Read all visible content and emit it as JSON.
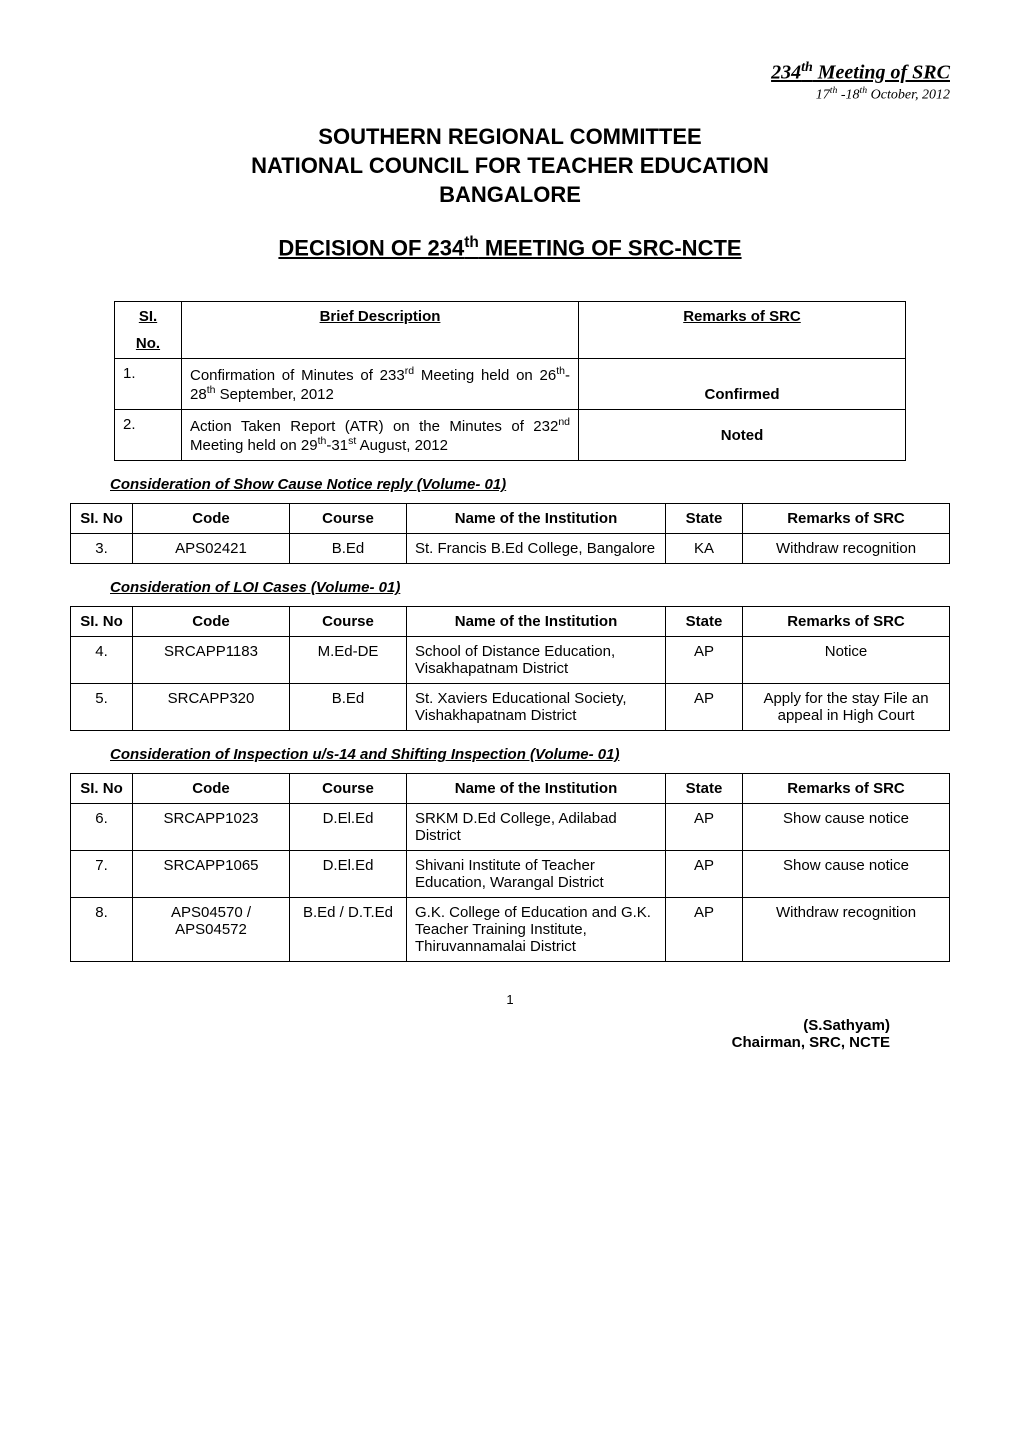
{
  "header": {
    "meeting_title_html": "234<sup>th</sup> Meeting of SRC",
    "meeting_date_html": "17<sup>th</sup> -18<sup>th</sup> October,  2012"
  },
  "main_title": {
    "line1": "SOUTHERN REGIONAL COMMITTEE",
    "line2": "NATIONAL COUNCIL FOR TEACHER EDUCATION",
    "line3": "BANGALORE"
  },
  "decision_title_html": "DECISION OF 234<sup>th</sup> MEETING OF SRC-NCTE",
  "table1": {
    "headers": {
      "col1_line1": "SI.",
      "col1_line2": "No.",
      "col2": "Brief Description",
      "col3": "Remarks of SRC"
    },
    "rows": [
      {
        "no": "1.",
        "desc_html": "Confirmation of Minutes of 233<sup>rd</sup> Meeting held on 26<sup>th</sup>-28<sup>th</sup> September, 2012",
        "remarks": "Confirmed"
      },
      {
        "no": "2.",
        "desc_html": "Action Taken Report (ATR) on the Minutes of 232<sup>nd</sup> Meeting held on 29<sup>th</sup>-31<sup>st</sup> August, 2012",
        "remarks": "Noted"
      }
    ]
  },
  "section1": {
    "heading": "Consideration of  Show Cause Notice reply  (Volume- 01)",
    "headers": {
      "sino": "SI. No",
      "code": "Code",
      "course": "Course",
      "name": "Name of the Institution",
      "state": "State",
      "remarks": "Remarks of SRC"
    },
    "rows": [
      {
        "no": "3.",
        "code": "APS02421",
        "course": "B.Ed",
        "name": "St. Francis B.Ed College, Bangalore",
        "state": "KA",
        "remarks": "Withdraw recognition"
      }
    ]
  },
  "section2": {
    "heading": "Consideration of  LOI Cases (Volume- 01)",
    "rows": [
      {
        "no": "4.",
        "code": "SRCAPP1183",
        "course": "M.Ed-DE",
        "name": "School of Distance Education, Visakhapatnam District",
        "state": "AP",
        "remarks": "Notice"
      },
      {
        "no": "5.",
        "code": "SRCAPP320",
        "course": "B.Ed",
        "name": "St. Xaviers Educational Society, Vishakhapatnam District",
        "state": "AP",
        "remarks": "Apply for the stay File an appeal in High Court"
      }
    ]
  },
  "section3": {
    "heading": "Consideration of  Inspection u/s-14 and Shifting Inspection (Volume- 01)",
    "rows": [
      {
        "no": "6.",
        "code": "SRCAPP1023",
        "course": "D.El.Ed",
        "name": "SRKM D.Ed College, Adilabad District",
        "state": "AP",
        "remarks": "Show cause notice"
      },
      {
        "no": "7.",
        "code": "SRCAPP1065",
        "course": "D.El.Ed",
        "name": "Shivani Institute of Teacher Education, Warangal District",
        "state": "AP",
        "remarks": "Show cause notice"
      },
      {
        "no": "8.",
        "code": "APS04570 / APS04572",
        "course": "B.Ed / D.T.Ed",
        "name": "G.K. College of Education and G.K. Teacher Training Institute, Thiruvannamalai District",
        "state": "AP",
        "remarks": "Withdraw recognition"
      }
    ]
  },
  "page_number": "1",
  "footer": {
    "name": "(S.Sathyam)",
    "title": "Chairman, SRC, NCTE"
  }
}
